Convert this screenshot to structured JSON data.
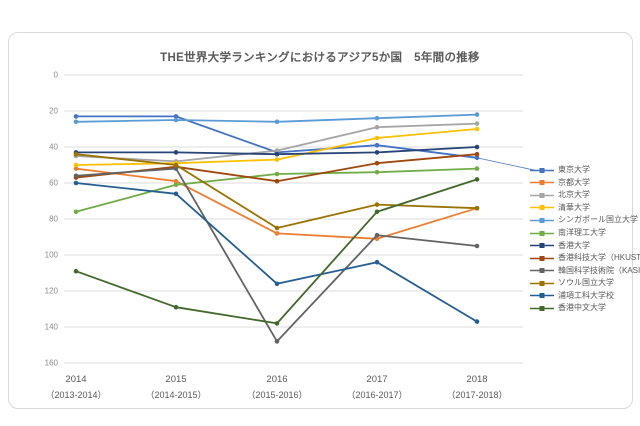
{
  "title": "THE世界大学ランキングにおけるアジア5か国　5年間の推移",
  "chart_data": {
    "type": "line",
    "title": "THE世界大学ランキングにおけるアジア5か国　5年間の推移",
    "x_categories": [
      {
        "year": "2014",
        "range": "（2013-2014）"
      },
      {
        "year": "2015",
        "range": "（2014-2015）"
      },
      {
        "year": "2016",
        "range": "（2015-2016）"
      },
      {
        "year": "2017",
        "range": "（2016-2017）"
      },
      {
        "year": "2018",
        "range": "（2017-2018）"
      }
    ],
    "y_axis": {
      "ticks": [
        0,
        20,
        40,
        60,
        80,
        100,
        120,
        140,
        160
      ],
      "min": 0,
      "max": 160,
      "inverted": true,
      "grid": true
    },
    "legend_position": "right",
    "series": [
      {
        "name": "東京大学",
        "color": "#4472C4",
        "values": [
          23,
          23,
          43,
          39,
          46
        ]
      },
      {
        "name": "京都大学",
        "color": "#ED7D31",
        "values": [
          52,
          59,
          88,
          91,
          74
        ]
      },
      {
        "name": "北京大学",
        "color": "#A5A5A5",
        "values": [
          45,
          48,
          42,
          29,
          27
        ]
      },
      {
        "name": "清華大学",
        "color": "#FFC000",
        "values": [
          50,
          49,
          47,
          35,
          30
        ]
      },
      {
        "name": "シンガポール国立大学",
        "color": "#5B9BD5",
        "values": [
          26,
          25,
          26,
          24,
          22
        ]
      },
      {
        "name": "南洋理工大学",
        "color": "#70AD47",
        "values": [
          76,
          61,
          55,
          54,
          52
        ]
      },
      {
        "name": "香港大学",
        "color": "#264478",
        "values": [
          43,
          43,
          44,
          43,
          40
        ]
      },
      {
        "name": "香港科技大学（HKUST）",
        "color": "#9E480E",
        "values": [
          57,
          51,
          59,
          49,
          44
        ]
      },
      {
        "name": "韓国科学技術院（KASIT）",
        "color": "#636363",
        "values": [
          56,
          52,
          148,
          89,
          95
        ]
      },
      {
        "name": "ソウル国立大学",
        "color": "#997300",
        "values": [
          44,
          50,
          85,
          72,
          74
        ]
      },
      {
        "name": "浦項工科大学校",
        "color": "#255E91",
        "values": [
          60,
          66,
          116,
          104,
          137
        ]
      },
      {
        "name": "香港中文大学",
        "color": "#43682B",
        "values": [
          109,
          129,
          138,
          76,
          58
        ]
      }
    ],
    "annotations": [
      {
        "type": "leader-line",
        "series": "東京大学",
        "point_index": 4,
        "to": "legend-item-0",
        "color": "#4472C4"
      }
    ]
  }
}
